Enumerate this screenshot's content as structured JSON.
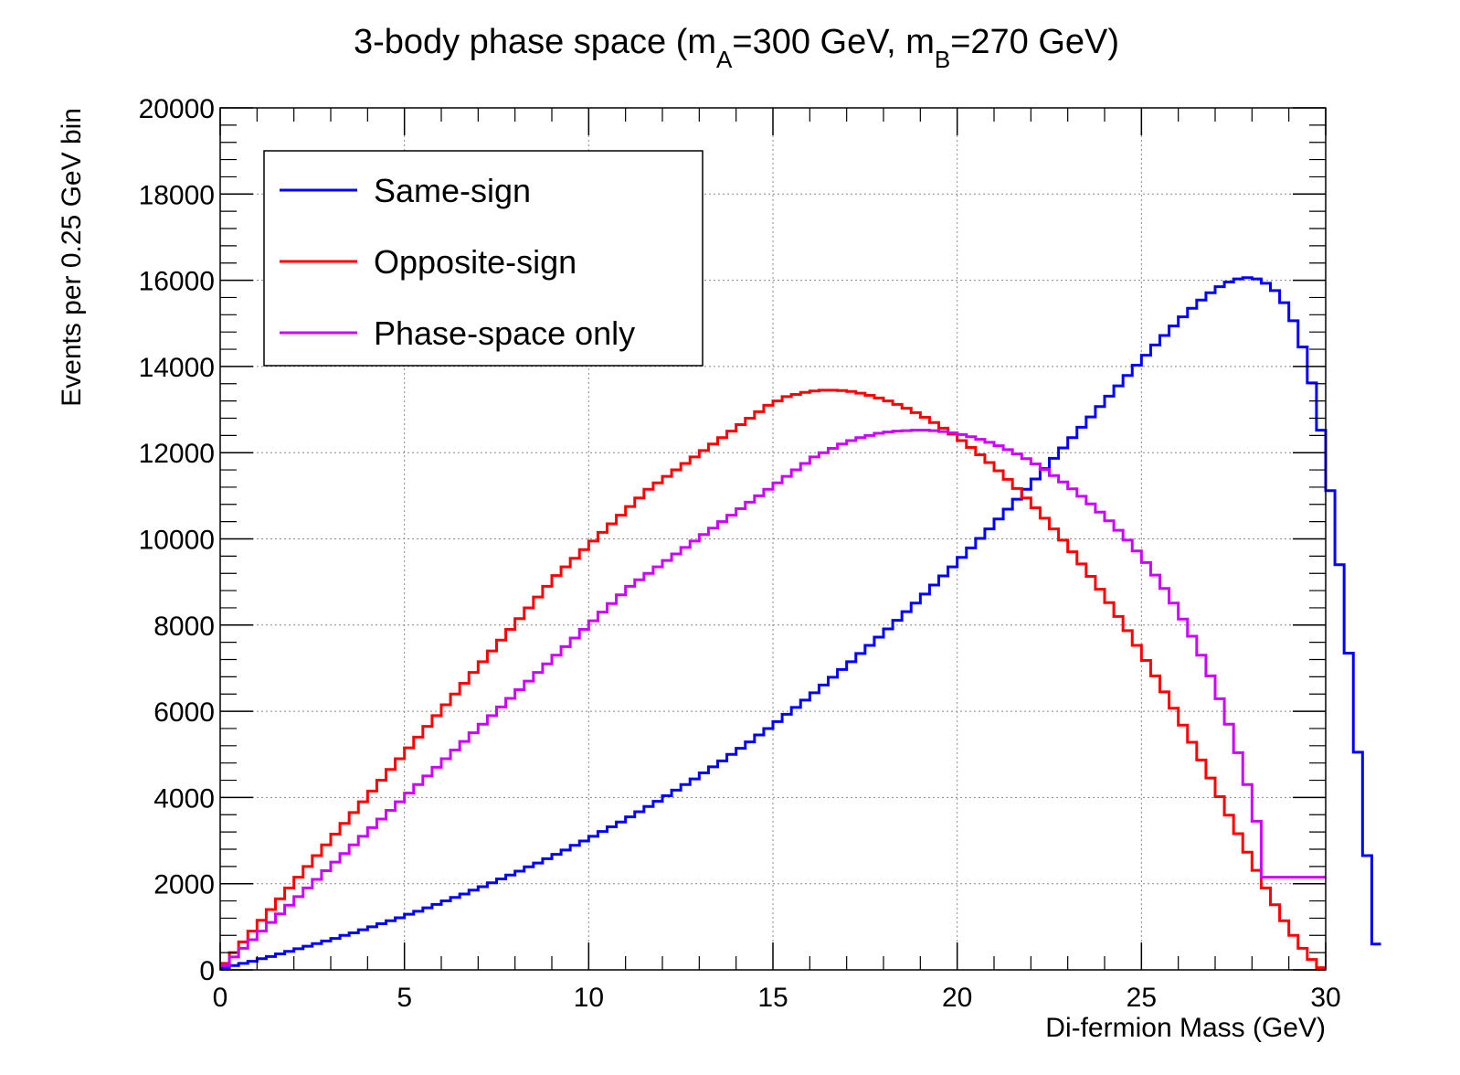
{
  "chart_data": {
    "type": "line",
    "title": {
      "prefix": "3-body phase space (m",
      "sub_a": "A",
      "mid": "=300 GeV, m",
      "sub_b": "B",
      "suffix": "=270 GeV)"
    },
    "xlabel": "Di-fermion Mass (GeV)",
    "ylabel": "Events per 0.25 GeV bin",
    "xlim": [
      0,
      30
    ],
    "ylim": [
      0,
      20000
    ],
    "bin_width": 0.25,
    "x_ticks": [
      "0",
      "5",
      "10",
      "15",
      "20",
      "25",
      "30"
    ],
    "y_ticks": [
      "0",
      "2000",
      "4000",
      "6000",
      "8000",
      "10000",
      "12000",
      "14000",
      "16000",
      "18000",
      "20000"
    ],
    "grid": true,
    "legend_position": "top-left",
    "series": [
      {
        "name": "Same-sign",
        "color": "#0000ff",
        "values": [
          50,
          100,
          150,
          200,
          260,
          310,
          370,
          430,
          490,
          550,
          610,
          670,
          730,
          800,
          860,
          930,
          1000,
          1070,
          1140,
          1210,
          1290,
          1360,
          1440,
          1520,
          1600,
          1680,
          1760,
          1850,
          1930,
          2020,
          2110,
          2200,
          2290,
          2390,
          2480,
          2580,
          2680,
          2780,
          2890,
          2990,
          3100,
          3210,
          3320,
          3430,
          3550,
          3670,
          3790,
          3910,
          4040,
          4170,
          4300,
          4430,
          4570,
          4710,
          4850,
          5000,
          5140,
          5290,
          5450,
          5600,
          5760,
          5930,
          6090,
          6260,
          6430,
          6610,
          6790,
          6970,
          7150,
          7340,
          7530,
          7720,
          7910,
          8110,
          8310,
          8510,
          8720,
          8930,
          9140,
          9350,
          9570,
          9790,
          10010,
          10230,
          10460,
          10690,
          10920,
          11150,
          11390,
          11630,
          11870,
          12110,
          12350,
          12590,
          12830,
          13070,
          13310,
          13550,
          13790,
          14030,
          14260,
          14500,
          14720,
          14940,
          15150,
          15350,
          15540,
          15710,
          15850,
          15960,
          16030,
          16060,
          16030,
          15930,
          15760,
          15480,
          15060,
          14450,
          13620,
          12520,
          11120,
          9400,
          7350,
          5050,
          2650,
          600
        ]
      },
      {
        "name": "Opposite-sign",
        "color": "#ff0000",
        "values": [
          150,
          400,
          650,
          900,
          1150,
          1400,
          1650,
          1900,
          2150,
          2400,
          2650,
          2900,
          3150,
          3400,
          3650,
          3900,
          4150,
          4400,
          4650,
          4900,
          5150,
          5400,
          5650,
          5900,
          6150,
          6400,
          6650,
          6900,
          7150,
          7400,
          7650,
          7900,
          8150,
          8400,
          8650,
          8900,
          9150,
          9350,
          9550,
          9750,
          9950,
          10150,
          10350,
          10550,
          10750,
          10950,
          11150,
          11300,
          11450,
          11600,
          11750,
          11900,
          12050,
          12200,
          12350,
          12500,
          12650,
          12800,
          12950,
          13100,
          13200,
          13300,
          13350,
          13400,
          13430,
          13450,
          13450,
          13440,
          13420,
          13380,
          13330,
          13270,
          13200,
          13120,
          13030,
          12930,
          12820,
          12700,
          12570,
          12430,
          12280,
          12120,
          11950,
          11770,
          11580,
          11380,
          11170,
          10950,
          10720,
          10480,
          10230,
          9970,
          9700,
          9420,
          9130,
          8830,
          8520,
          8200,
          7870,
          7530,
          7180,
          6820,
          6450,
          6070,
          5680,
          5280,
          4870,
          4450,
          4020,
          3590,
          3160,
          2730,
          2310,
          1900,
          1510,
          1140,
          800,
          500,
          240,
          50
        ]
      },
      {
        "name": "Phase-space only",
        "color": "#cc00ff",
        "values": [
          100,
          300,
          500,
          700,
          900,
          1100,
          1300,
          1500,
          1700,
          1900,
          2100,
          2300,
          2500,
          2700,
          2900,
          3100,
          3300,
          3500,
          3700,
          3900,
          4100,
          4300,
          4500,
          4700,
          4900,
          5100,
          5300,
          5500,
          5700,
          5900,
          6100,
          6300,
          6500,
          6700,
          6900,
          7100,
          7300,
          7500,
          7700,
          7900,
          8100,
          8300,
          8500,
          8700,
          8900,
          9050,
          9200,
          9350,
          9500,
          9650,
          9800,
          9950,
          10100,
          10250,
          10400,
          10550,
          10700,
          10850,
          11000,
          11150,
          11300,
          11450,
          11600,
          11750,
          11900,
          12000,
          12100,
          12200,
          12280,
          12350,
          12400,
          12450,
          12480,
          12500,
          12510,
          12520,
          12520,
          12510,
          12490,
          12460,
          12420,
          12370,
          12310,
          12240,
          12160,
          12070,
          11970,
          11860,
          11740,
          11610,
          11470,
          11320,
          11160,
          10990,
          10810,
          10620,
          10420,
          10200,
          9970,
          9720,
          9450,
          9160,
          8850,
          8510,
          8140,
          7740,
          7300,
          6820,
          6290,
          5700,
          5040,
          4300,
          3450,
          2150,
          2150,
          2150,
          2150,
          2150,
          2150,
          2150
        ]
      }
    ]
  }
}
